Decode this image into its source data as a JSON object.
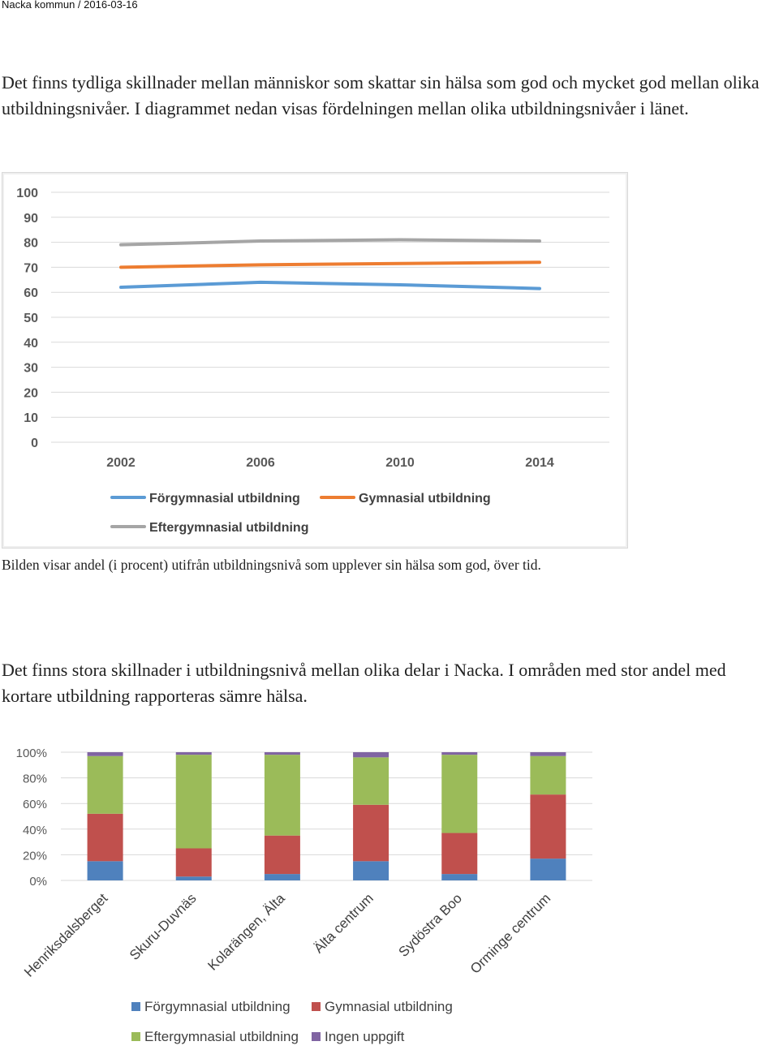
{
  "header": {
    "text": "Nacka kommun  /  2016-03-16"
  },
  "paragraph1": "Det finns tydliga skillnader mellan människor som skattar sin hälsa som god och mycket god mellan olika utbildningsnivåer. I diagrammet nedan visas fördelningen mellan olika utbildningsnivåer i länet.",
  "caption1": "Bilden visar andel (i procent) utifrån utbildningsnivå som upplever sin hälsa som god, över tid.",
  "paragraph2": "Det finns stora skillnader i utbildningsnivå mellan olika delar i Nacka. I områden med stor andel med kortare utbildning rapporteras sämre hälsa.",
  "chart_data": [
    {
      "type": "line",
      "title": "",
      "x": [
        "2002",
        "2006",
        "2010",
        "2014"
      ],
      "ylim": [
        0,
        100
      ],
      "yticks": [
        "0",
        "10",
        "20",
        "30",
        "40",
        "50",
        "60",
        "70",
        "80",
        "90",
        "100"
      ],
      "grid": true,
      "legend_position": "bottom",
      "series": [
        {
          "name": "Förgymnasial utbildning",
          "color": "#5b9bd5",
          "values": [
            62,
            64,
            63,
            61.5
          ]
        },
        {
          "name": "Gymnasial utbildning",
          "color": "#ed7d31",
          "values": [
            70,
            71,
            71.5,
            72
          ]
        },
        {
          "name": "Eftergymnasial utbildning",
          "color": "#a5a5a5",
          "values": [
            79,
            80.5,
            81,
            80.5
          ]
        }
      ]
    },
    {
      "type": "bar",
      "stacked": true,
      "categories": [
        "Henriksdalsberget",
        "Skuru-Duvnäs",
        "Kolarängen, Älta",
        "Älta centrum",
        "Sydöstra Boo",
        "Orminge centrum"
      ],
      "ylim": [
        0,
        100
      ],
      "yticks": [
        "0%",
        "20%",
        "40%",
        "60%",
        "80%",
        "100%"
      ],
      "grid": true,
      "legend_position": "bottom",
      "series": [
        {
          "name": "Förgymnasial utbildning",
          "color": "#4f81bd",
          "values": [
            15,
            3,
            5,
            15,
            5,
            17
          ]
        },
        {
          "name": "Gymnasial utbildning",
          "color": "#c0504d",
          "values": [
            37,
            22,
            30,
            44,
            32,
            50
          ]
        },
        {
          "name": "Eftergymnasial utbildning",
          "color": "#9bbb59",
          "values": [
            45,
            73,
            63,
            37,
            61,
            30
          ]
        },
        {
          "name": "Ingen uppgift",
          "color": "#8064a2",
          "values": [
            3,
            2,
            2,
            4,
            2,
            3
          ]
        }
      ]
    }
  ]
}
